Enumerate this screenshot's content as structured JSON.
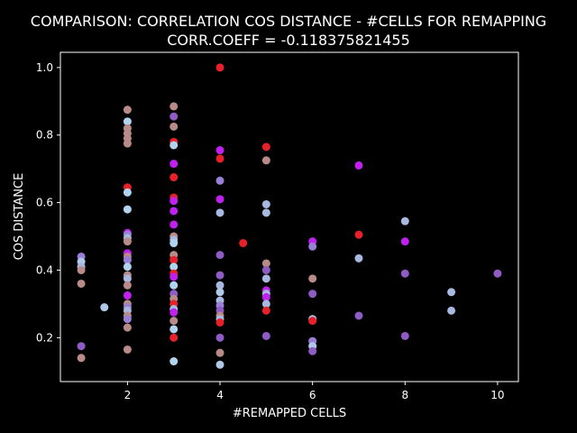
{
  "chart_data": {
    "type": "scatter",
    "title": "COMPARISON: CORRELATION COS DISTANCE - #CELLS FOR REMAPPING",
    "subtitle": "CORR.COEFF = -0.118375821455",
    "xlabel": "#REMAPPED CELLS",
    "ylabel": "COS DISTANCE",
    "xlim": [
      0.55,
      10.45
    ],
    "ylim": [
      0.07,
      1.045
    ],
    "xticks": [
      2,
      4,
      6,
      8,
      10
    ],
    "yticks": [
      0.2,
      0.4,
      0.6,
      0.8,
      1.0
    ],
    "grid": false,
    "legend": "none",
    "background": "#000000",
    "axis_color": "#ffffff",
    "points": [
      {
        "x": 1,
        "y": 0.44,
        "color": "#9a7fd6"
      },
      {
        "x": 1,
        "y": 0.425,
        "color": "#b0c8e8"
      },
      {
        "x": 1,
        "y": 0.41,
        "color": "#a8b8e0"
      },
      {
        "x": 1,
        "y": 0.4,
        "color": "#b88a88"
      },
      {
        "x": 1,
        "y": 0.36,
        "color": "#b88a88"
      },
      {
        "x": 1,
        "y": 0.175,
        "color": "#8e5cc4"
      },
      {
        "x": 1,
        "y": 0.14,
        "color": "#b88a88"
      },
      {
        "x": 1.5,
        "y": 0.29,
        "color": "#b0c8e8"
      },
      {
        "x": 2,
        "y": 0.875,
        "color": "#b88a88"
      },
      {
        "x": 2,
        "y": 0.84,
        "color": "#b0d4f0"
      },
      {
        "x": 2,
        "y": 0.82,
        "color": "#b88a88"
      },
      {
        "x": 2,
        "y": 0.805,
        "color": "#b88a88"
      },
      {
        "x": 2,
        "y": 0.79,
        "color": "#b88a88"
      },
      {
        "x": 2,
        "y": 0.775,
        "color": "#b88a88"
      },
      {
        "x": 2,
        "y": 0.645,
        "color": "#e8202a"
      },
      {
        "x": 2,
        "y": 0.63,
        "color": "#b0d4f0"
      },
      {
        "x": 2,
        "y": 0.58,
        "color": "#b0d4f0"
      },
      {
        "x": 2,
        "y": 0.51,
        "color": "#c020f0"
      },
      {
        "x": 2,
        "y": 0.505,
        "color": "#9a7fd6"
      },
      {
        "x": 2,
        "y": 0.495,
        "color": "#a8b8e0"
      },
      {
        "x": 2,
        "y": 0.485,
        "color": "#b88a88"
      },
      {
        "x": 2,
        "y": 0.45,
        "color": "#c020f0"
      },
      {
        "x": 2,
        "y": 0.44,
        "color": "#b88a88"
      },
      {
        "x": 2,
        "y": 0.43,
        "color": "#9a7fd6"
      },
      {
        "x": 2,
        "y": 0.41,
        "color": "#b0d4f0"
      },
      {
        "x": 2,
        "y": 0.385,
        "color": "#b88a88"
      },
      {
        "x": 2,
        "y": 0.375,
        "color": "#a8b8e0"
      },
      {
        "x": 2,
        "y": 0.355,
        "color": "#b88a88"
      },
      {
        "x": 2,
        "y": 0.325,
        "color": "#c020f0"
      },
      {
        "x": 2,
        "y": 0.3,
        "color": "#b88a88"
      },
      {
        "x": 2,
        "y": 0.29,
        "color": "#9a7fd6"
      },
      {
        "x": 2,
        "y": 0.28,
        "color": "#a8b8e0"
      },
      {
        "x": 2,
        "y": 0.265,
        "color": "#b88a88"
      },
      {
        "x": 2,
        "y": 0.255,
        "color": "#9a7fd6"
      },
      {
        "x": 2,
        "y": 0.23,
        "color": "#b88a88"
      },
      {
        "x": 2,
        "y": 0.165,
        "color": "#b88a88"
      },
      {
        "x": 3,
        "y": 0.885,
        "color": "#b88a88"
      },
      {
        "x": 3,
        "y": 0.855,
        "color": "#8e5cc4"
      },
      {
        "x": 3,
        "y": 0.825,
        "color": "#b88a88"
      },
      {
        "x": 3,
        "y": 0.78,
        "color": "#e8202a"
      },
      {
        "x": 3,
        "y": 0.77,
        "color": "#b0d4f0"
      },
      {
        "x": 3,
        "y": 0.715,
        "color": "#c020f0"
      },
      {
        "x": 3,
        "y": 0.675,
        "color": "#e8202a"
      },
      {
        "x": 3,
        "y": 0.615,
        "color": "#e8202a"
      },
      {
        "x": 3,
        "y": 0.605,
        "color": "#c020f0"
      },
      {
        "x": 3,
        "y": 0.575,
        "color": "#c020f0"
      },
      {
        "x": 3,
        "y": 0.535,
        "color": "#c020f0"
      },
      {
        "x": 3,
        "y": 0.5,
        "color": "#b88a88"
      },
      {
        "x": 3,
        "y": 0.49,
        "color": "#a8b8e0"
      },
      {
        "x": 3,
        "y": 0.48,
        "color": "#b0d4f0"
      },
      {
        "x": 3,
        "y": 0.445,
        "color": "#b88a88"
      },
      {
        "x": 3,
        "y": 0.43,
        "color": "#e8202a"
      },
      {
        "x": 3,
        "y": 0.41,
        "color": "#b0d4f0"
      },
      {
        "x": 3,
        "y": 0.39,
        "color": "#e8202a"
      },
      {
        "x": 3,
        "y": 0.38,
        "color": "#c020f0"
      },
      {
        "x": 3,
        "y": 0.355,
        "color": "#b0d4f0"
      },
      {
        "x": 3,
        "y": 0.33,
        "color": "#8e5cc4"
      },
      {
        "x": 3,
        "y": 0.315,
        "color": "#b88a88"
      },
      {
        "x": 3,
        "y": 0.3,
        "color": "#e8202a"
      },
      {
        "x": 3,
        "y": 0.285,
        "color": "#a8b8e0"
      },
      {
        "x": 3,
        "y": 0.275,
        "color": "#c020f0"
      },
      {
        "x": 3,
        "y": 0.25,
        "color": "#b88a88"
      },
      {
        "x": 3,
        "y": 0.225,
        "color": "#b0d4f0"
      },
      {
        "x": 3,
        "y": 0.2,
        "color": "#e8202a"
      },
      {
        "x": 3,
        "y": 0.13,
        "color": "#b0d4f0"
      },
      {
        "x": 4,
        "y": 1.0,
        "color": "#e8202a"
      },
      {
        "x": 4,
        "y": 0.755,
        "color": "#c020f0"
      },
      {
        "x": 4,
        "y": 0.73,
        "color": "#e8202a"
      },
      {
        "x": 4,
        "y": 0.665,
        "color": "#9a7fd6"
      },
      {
        "x": 4,
        "y": 0.61,
        "color": "#c020f0"
      },
      {
        "x": 4,
        "y": 0.57,
        "color": "#a8b8e0"
      },
      {
        "x": 4,
        "y": 0.445,
        "color": "#8e5cc4"
      },
      {
        "x": 4,
        "y": 0.385,
        "color": "#8e5cc4"
      },
      {
        "x": 4,
        "y": 0.355,
        "color": "#a8b8e0"
      },
      {
        "x": 4,
        "y": 0.335,
        "color": "#b0c8e8"
      },
      {
        "x": 4,
        "y": 0.31,
        "color": "#a8b8e0"
      },
      {
        "x": 4,
        "y": 0.295,
        "color": "#9a7fd6"
      },
      {
        "x": 4,
        "y": 0.28,
        "color": "#8e5cc4"
      },
      {
        "x": 4,
        "y": 0.265,
        "color": "#b88a88"
      },
      {
        "x": 4,
        "y": 0.255,
        "color": "#a8b8e0"
      },
      {
        "x": 4,
        "y": 0.245,
        "color": "#e8202a"
      },
      {
        "x": 4,
        "y": 0.2,
        "color": "#8e5cc4"
      },
      {
        "x": 4,
        "y": 0.155,
        "color": "#b88a88"
      },
      {
        "x": 4,
        "y": 0.12,
        "color": "#b0c8e8"
      },
      {
        "x": 4.5,
        "y": 0.48,
        "color": "#e8202a"
      },
      {
        "x": 5,
        "y": 0.765,
        "color": "#e8202a"
      },
      {
        "x": 5,
        "y": 0.725,
        "color": "#b88a88"
      },
      {
        "x": 5,
        "y": 0.595,
        "color": "#a8b8e0"
      },
      {
        "x": 5,
        "y": 0.57,
        "color": "#a8b8e0"
      },
      {
        "x": 5,
        "y": 0.42,
        "color": "#b88a88"
      },
      {
        "x": 5,
        "y": 0.4,
        "color": "#8e5cc4"
      },
      {
        "x": 5,
        "y": 0.375,
        "color": "#a8b8e0"
      },
      {
        "x": 5,
        "y": 0.34,
        "color": "#c020f0"
      },
      {
        "x": 5,
        "y": 0.33,
        "color": "#a8b8e0"
      },
      {
        "x": 5,
        "y": 0.32,
        "color": "#c020f0"
      },
      {
        "x": 5,
        "y": 0.3,
        "color": "#a8b8e0"
      },
      {
        "x": 5,
        "y": 0.28,
        "color": "#e8202a"
      },
      {
        "x": 5,
        "y": 0.205,
        "color": "#8e5cc4"
      },
      {
        "x": 6,
        "y": 0.485,
        "color": "#c020f0"
      },
      {
        "x": 6,
        "y": 0.47,
        "color": "#9a7fd6"
      },
      {
        "x": 6,
        "y": 0.375,
        "color": "#b88a88"
      },
      {
        "x": 6,
        "y": 0.33,
        "color": "#8e5cc4"
      },
      {
        "x": 6,
        "y": 0.255,
        "color": "#b0c8e8"
      },
      {
        "x": 6,
        "y": 0.25,
        "color": "#e8202a"
      },
      {
        "x": 6,
        "y": 0.19,
        "color": "#9a7fd6"
      },
      {
        "x": 6,
        "y": 0.175,
        "color": "#b0c8e8"
      },
      {
        "x": 6,
        "y": 0.16,
        "color": "#8e5cc4"
      },
      {
        "x": 7,
        "y": 0.71,
        "color": "#c020f0"
      },
      {
        "x": 7,
        "y": 0.505,
        "color": "#e8202a"
      },
      {
        "x": 7,
        "y": 0.435,
        "color": "#a8b8e0"
      },
      {
        "x": 7,
        "y": 0.265,
        "color": "#8e5cc4"
      },
      {
        "x": 8,
        "y": 0.545,
        "color": "#a8b8e0"
      },
      {
        "x": 8,
        "y": 0.485,
        "color": "#c020f0"
      },
      {
        "x": 8,
        "y": 0.39,
        "color": "#8e5cc4"
      },
      {
        "x": 8,
        "y": 0.205,
        "color": "#8e5cc4"
      },
      {
        "x": 9,
        "y": 0.335,
        "color": "#a8b8e0"
      },
      {
        "x": 9,
        "y": 0.28,
        "color": "#a8b8e0"
      },
      {
        "x": 10,
        "y": 0.39,
        "color": "#8e5cc4"
      }
    ]
  }
}
